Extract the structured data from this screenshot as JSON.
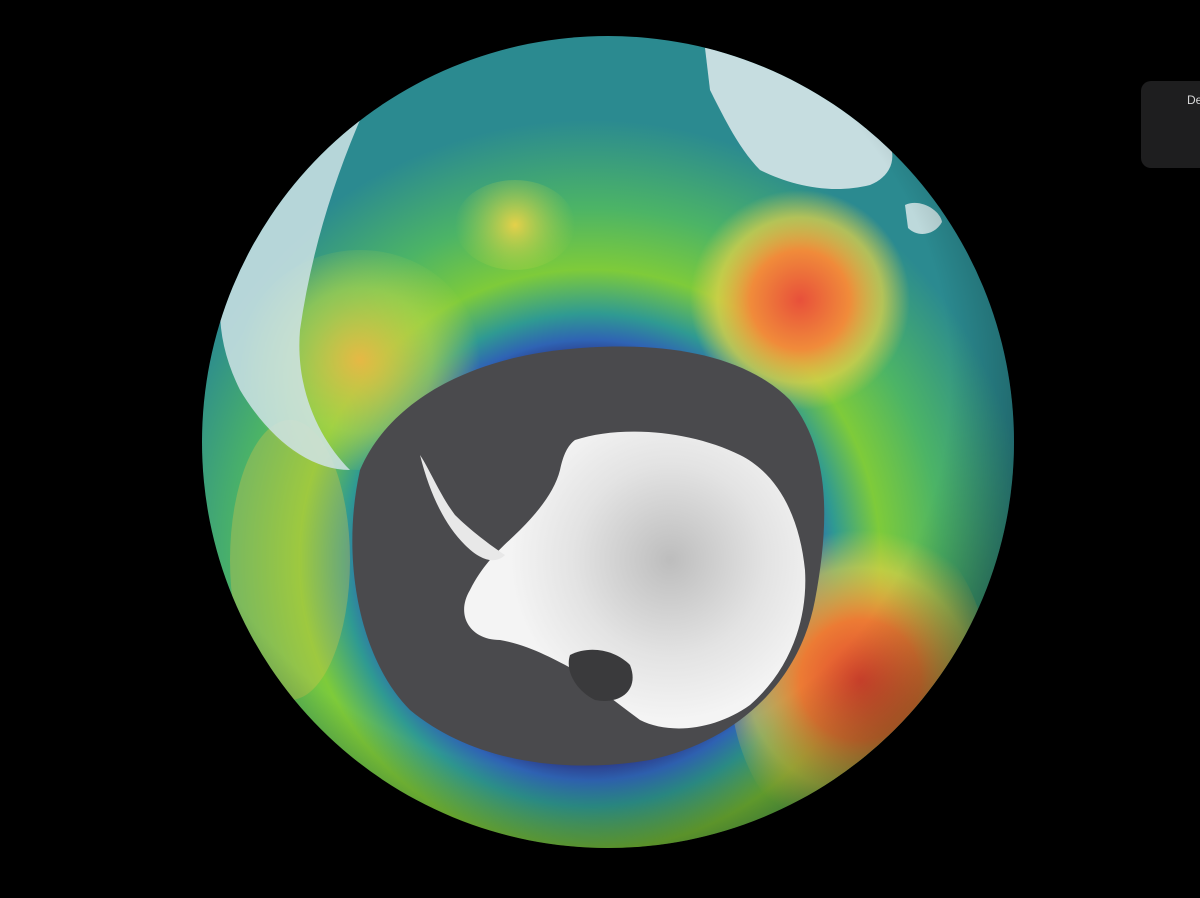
{
  "image": {
    "subject": "ozone-concentration-globe"
  },
  "side_panel": {
    "label": "De"
  }
}
